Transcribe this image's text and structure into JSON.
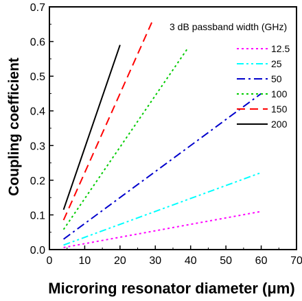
{
  "chart_data": {
    "type": "line",
    "xlabel": "Microring resonator diameter (μm)",
    "ylabel": "Coupling coefficient",
    "xlim": [
      0,
      70
    ],
    "ylim": [
      0.0,
      0.7
    ],
    "xticks": [
      "0",
      "10",
      "20",
      "30",
      "40",
      "50",
      "60",
      "70"
    ],
    "yticks": [
      "0.0",
      "0.1",
      "0.2",
      "0.3",
      "0.4",
      "0.5",
      "0.6",
      "0.7"
    ],
    "legend_title": "3 dB passband width (GHz)",
    "legend_position": "top-right",
    "grid": false,
    "series": [
      {
        "name": "12.5",
        "color": "#ff00ff",
        "dash": "dotted",
        "points": [
          [
            4,
            0.006
          ],
          [
            60,
            0.11
          ]
        ]
      },
      {
        "name": "25",
        "color": "#00ffff",
        "dash": "dash-dot-dot",
        "points": [
          [
            4,
            0.013
          ],
          [
            60,
            0.222
          ]
        ]
      },
      {
        "name": "50",
        "color": "#0000cc",
        "dash": "dash-dot",
        "points": [
          [
            4,
            0.03
          ],
          [
            60,
            0.45
          ]
        ]
      },
      {
        "name": "100",
        "color": "#00cc00",
        "dash": "dotted",
        "points": [
          [
            4,
            0.058
          ],
          [
            39,
            0.578
          ]
        ]
      },
      {
        "name": "150",
        "color": "#ff0000",
        "dash": "dashed",
        "points": [
          [
            4,
            0.085
          ],
          [
            29,
            0.655
          ]
        ]
      },
      {
        "name": "200",
        "color": "#000000",
        "dash": "solid",
        "points": [
          [
            4,
            0.115
          ],
          [
            20,
            0.59
          ]
        ]
      }
    ]
  }
}
